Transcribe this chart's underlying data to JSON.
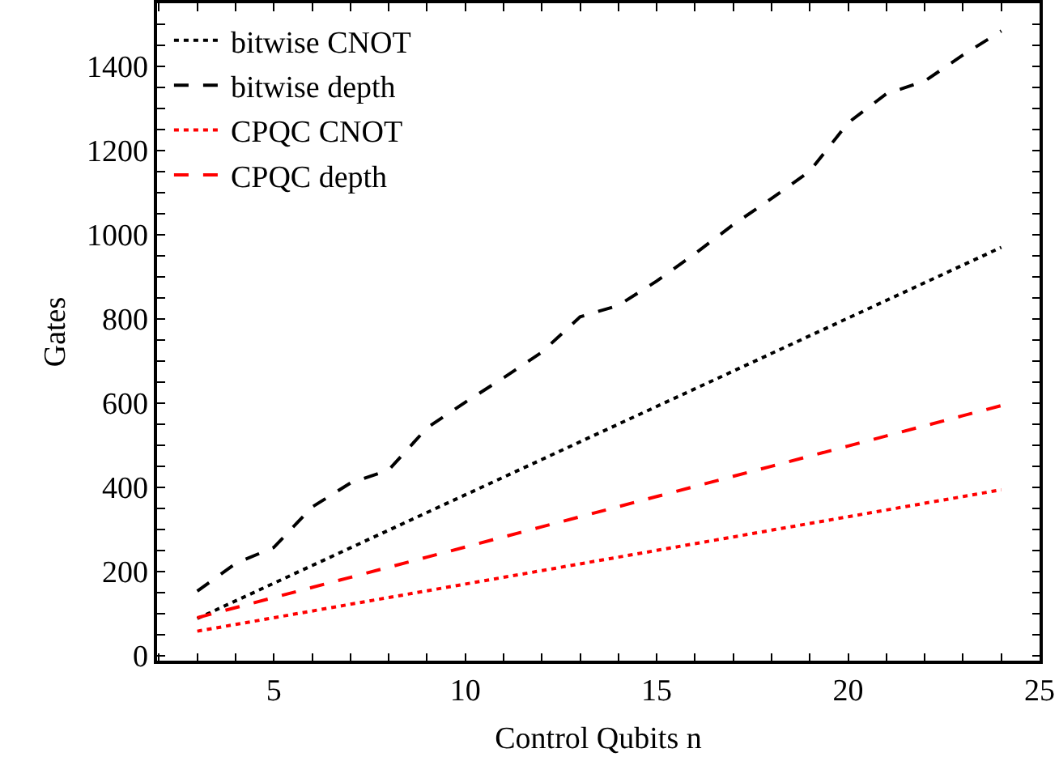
{
  "chart_data": {
    "type": "line",
    "xlabel": "Control Qubits n",
    "ylabel": "Gates",
    "x": [
      3,
      4,
      5,
      6,
      7,
      8,
      9,
      10,
      11,
      12,
      13,
      14,
      15,
      16,
      17,
      18,
      19,
      20,
      21,
      22,
      23,
      24
    ],
    "series": [
      {
        "name": "bitwise CNOT",
        "color": "#000000",
        "line_style": "dotted",
        "values": [
          88,
          130,
          172,
          214,
          256,
          298,
          340,
          382,
          424,
          466,
          508,
          550,
          592,
          634,
          676,
          718,
          760,
          802,
          844,
          886,
          928,
          970
        ]
      },
      {
        "name": "bitwise depth",
        "color": "#000000",
        "line_style": "dashed",
        "values": [
          153,
          219,
          257,
          353,
          410,
          441,
          541,
          602,
          660,
          721,
          805,
          832,
          890,
          955,
          1024,
          1086,
          1151,
          1266,
          1335,
          1365,
          1427,
          1484
        ]
      },
      {
        "name": "CPQC CNOT",
        "color": "#ff0000",
        "line_style": "dotted",
        "values": [
          58,
          74,
          90,
          106,
          122,
          138,
          154,
          170,
          186,
          202,
          218,
          234,
          250,
          266,
          282,
          298,
          314,
          330,
          346,
          362,
          378,
          394
        ]
      },
      {
        "name": "CPQC depth",
        "color": "#ff0000",
        "line_style": "dashed",
        "values": [
          90,
          114,
          138,
          162,
          186,
          210,
          234,
          258,
          282,
          306,
          330,
          354,
          378,
          402,
          426,
          450,
          474,
          498,
          522,
          546,
          570,
          594
        ]
      }
    ],
    "xlim": [
      1.95,
      25
    ],
    "ylim": [
      -12,
      1550
    ],
    "xticks": [
      {
        "value": 2,
        "label": null
      },
      {
        "value": 3,
        "label": null
      },
      {
        "value": 4,
        "label": null
      },
      5,
      {
        "value": 6,
        "label": null
      },
      {
        "value": 7,
        "label": null
      },
      {
        "value": 8,
        "label": null
      },
      {
        "value": 9,
        "label": null
      },
      10,
      {
        "value": 11,
        "label": null
      },
      {
        "value": 12,
        "label": null
      },
      {
        "value": 13,
        "label": null
      },
      {
        "value": 14,
        "label": null
      },
      15,
      {
        "value": 16,
        "label": null
      },
      {
        "value": 17,
        "label": null
      },
      {
        "value": 18,
        "label": null
      },
      {
        "value": 19,
        "label": null
      },
      20,
      {
        "value": 21,
        "label": null
      },
      {
        "value": 22,
        "label": null
      },
      {
        "value": 23,
        "label": null
      },
      {
        "value": 24,
        "label": null
      },
      25
    ],
    "yticks": [
      0,
      {
        "value": 50,
        "label": null
      },
      {
        "value": 100,
        "label": null
      },
      {
        "value": 150,
        "label": null
      },
      200,
      {
        "value": 250,
        "label": null
      },
      {
        "value": 300,
        "label": null
      },
      {
        "value": 350,
        "label": null
      },
      400,
      {
        "value": 450,
        "label": null
      },
      {
        "value": 500,
        "label": null
      },
      {
        "value": 550,
        "label": null
      },
      600,
      {
        "value": 650,
        "label": null
      },
      {
        "value": 700,
        "label": null
      },
      {
        "value": 750,
        "label": null
      },
      800,
      {
        "value": 850,
        "label": null
      },
      {
        "value": 900,
        "label": null
      },
      {
        "value": 950,
        "label": null
      },
      1000,
      {
        "value": 1050,
        "label": null
      },
      {
        "value": 1100,
        "label": null
      },
      {
        "value": 1150,
        "label": null
      },
      1200,
      {
        "value": 1250,
        "label": null
      },
      {
        "value": 1300,
        "label": null
      },
      {
        "value": 1350,
        "label": null
      },
      1400,
      {
        "value": 1450,
        "label": null
      },
      {
        "value": 1500,
        "label": null
      }
    ],
    "grid": false,
    "legend": "top left",
    "marker": "none"
  }
}
